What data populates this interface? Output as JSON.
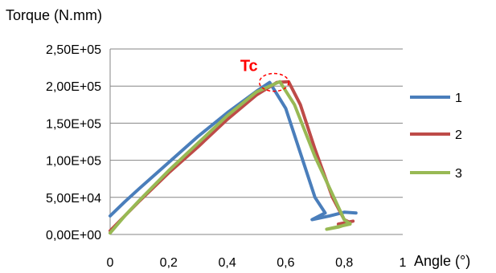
{
  "chart_data": {
    "type": "line",
    "ylabel": "Torque  (N.mm)",
    "xlabel": "Angle (°)",
    "xlim": [
      0,
      1
    ],
    "ylim": [
      0,
      250000
    ],
    "x_ticks": [
      0,
      0.2,
      0.4,
      0.6,
      0.8,
      1
    ],
    "x_tick_labels": [
      "0",
      "0,2",
      "0,4",
      "0,6",
      "0,8",
      "1"
    ],
    "y_ticks": [
      0,
      50000,
      100000,
      150000,
      200000,
      250000
    ],
    "y_tick_labels": [
      "0,00E+00",
      "5,00E+04",
      "1,00E+05",
      "1,50E+05",
      "2,00E+05",
      "2,50E+05"
    ],
    "grid": "horizontal",
    "legend_position": "right",
    "annotation": {
      "text": "Tc",
      "color": "#ff0000",
      "x": 0.56,
      "y": 205000,
      "rx": 0.05,
      "ry": 12000
    },
    "series": [
      {
        "name": "1",
        "color": "#4a7ebb",
        "points": [
          [
            0,
            25000
          ],
          [
            0.05,
            44000
          ],
          [
            0.1,
            62000
          ],
          [
            0.2,
            97000
          ],
          [
            0.3,
            132000
          ],
          [
            0.4,
            164000
          ],
          [
            0.5,
            193000
          ],
          [
            0.545,
            205000
          ],
          [
            0.6,
            170000
          ],
          [
            0.65,
            110000
          ],
          [
            0.7,
            50000
          ],
          [
            0.735,
            29000
          ],
          [
            0.69,
            20000
          ],
          [
            0.75,
            25000
          ],
          [
            0.8,
            30000
          ],
          [
            0.84,
            29000
          ]
        ]
      },
      {
        "name": "2",
        "color": "#be4b48",
        "points": [
          [
            0,
            5000
          ],
          [
            0.05,
            25000
          ],
          [
            0.1,
            45000
          ],
          [
            0.2,
            83000
          ],
          [
            0.3,
            118000
          ],
          [
            0.4,
            155000
          ],
          [
            0.5,
            188000
          ],
          [
            0.57,
            205000
          ],
          [
            0.61,
            206000
          ],
          [
            0.65,
            175000
          ],
          [
            0.7,
            115000
          ],
          [
            0.76,
            50000
          ],
          [
            0.8,
            20000
          ],
          [
            0.82,
            16000
          ],
          [
            0.78,
            14000
          ],
          [
            0.83,
            18000
          ]
        ]
      },
      {
        "name": "3",
        "color": "#98b954",
        "points": [
          [
            0,
            2000
          ],
          [
            0.05,
            25000
          ],
          [
            0.1,
            46000
          ],
          [
            0.2,
            86000
          ],
          [
            0.3,
            123000
          ],
          [
            0.4,
            160000
          ],
          [
            0.5,
            192000
          ],
          [
            0.58,
            206000
          ],
          [
            0.63,
            175000
          ],
          [
            0.7,
            105000
          ],
          [
            0.8,
            20000
          ],
          [
            0.82,
            14000
          ],
          [
            0.74,
            7000
          ],
          [
            0.78,
            10000
          ],
          [
            0.82,
            15000
          ]
        ]
      }
    ]
  }
}
